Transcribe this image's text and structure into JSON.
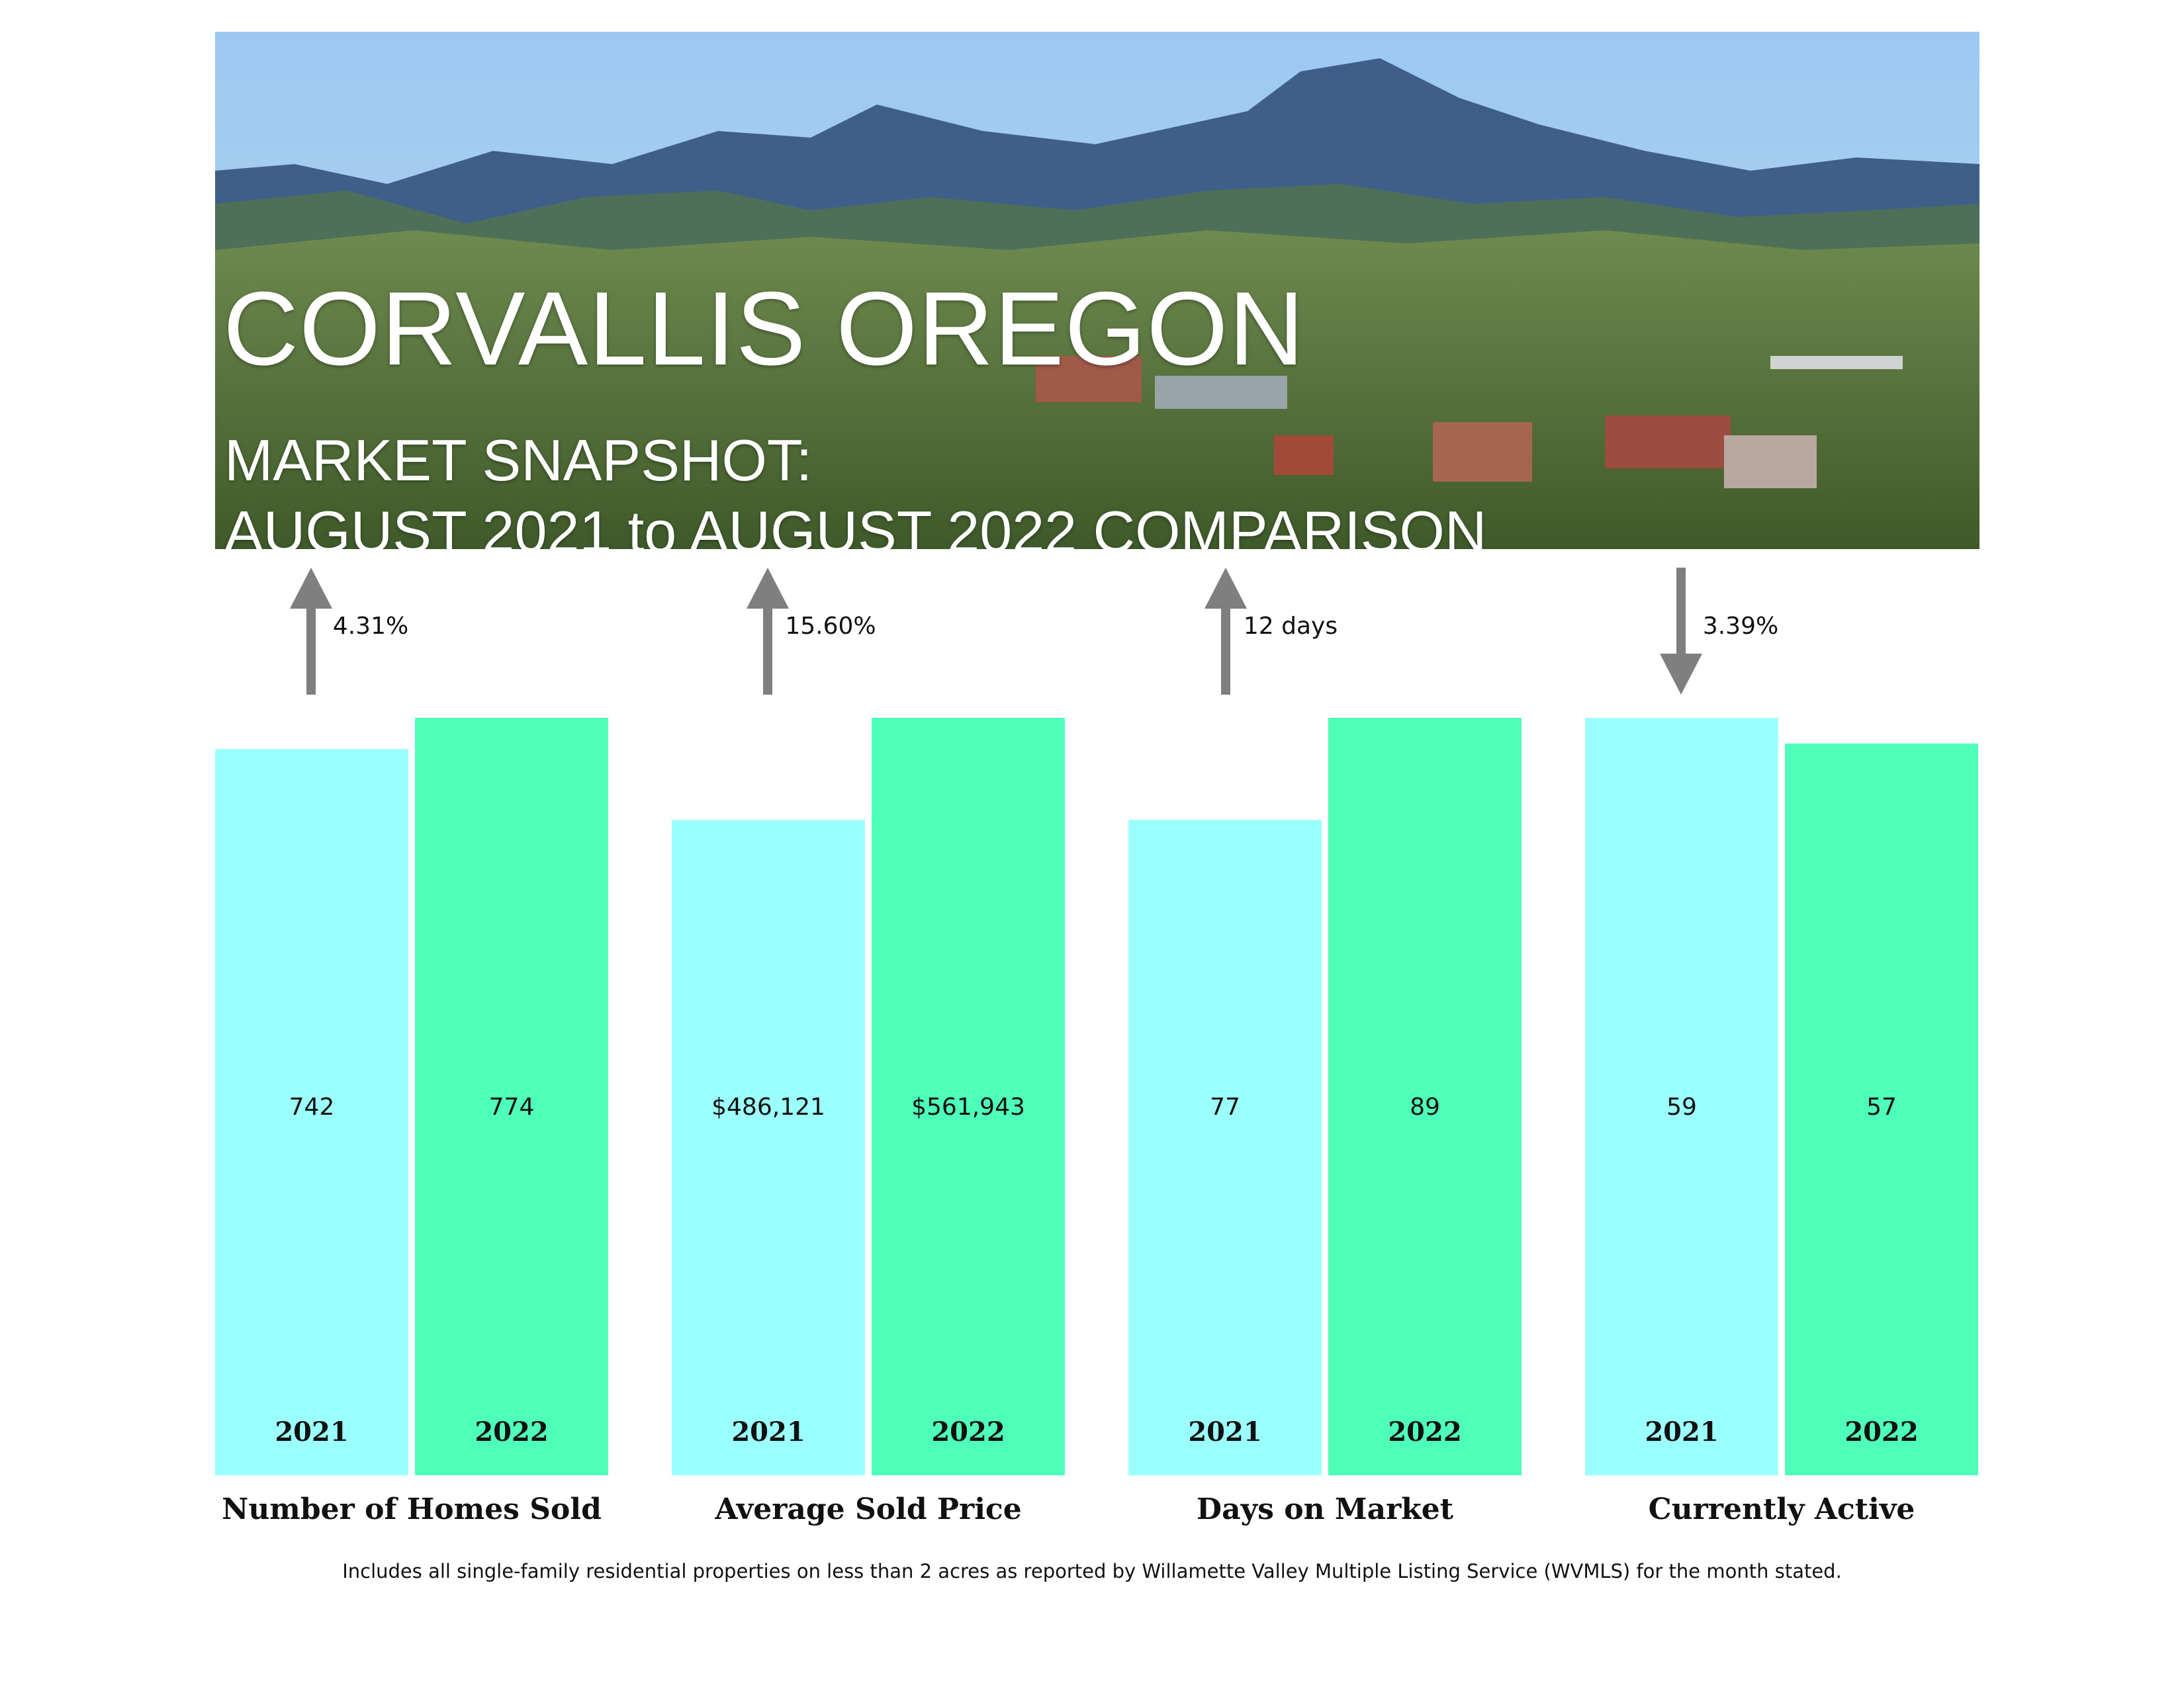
{
  "header": {
    "title": "CORVALLIS OREGON",
    "subtitle_1": "MARKET SNAPSHOT:",
    "subtitle_2": "AUGUST 2021 to AUGUST 2022 COMPARISON"
  },
  "colors": {
    "bar_2021": "#9bfffd",
    "bar_2022": "#4effba",
    "arrow": "#7f7f7f",
    "text": "#111111"
  },
  "chart_data": [
    {
      "type": "bar",
      "title": "Number of Homes Sold",
      "categories": [
        "2021",
        "2022"
      ],
      "values": [
        742,
        774
      ],
      "value_labels": [
        "742",
        "774"
      ],
      "change": {
        "direction": "up",
        "label": "4.31%"
      }
    },
    {
      "type": "bar",
      "title": "Average Sold Price",
      "categories": [
        "2021",
        "2022"
      ],
      "values": [
        486121,
        561943
      ],
      "value_labels": [
        "$486,121",
        "$561,943"
      ],
      "change": {
        "direction": "up",
        "label": "15.60%"
      }
    },
    {
      "type": "bar",
      "title": "Days on Market",
      "categories": [
        "2021",
        "2022"
      ],
      "values": [
        77,
        89
      ],
      "value_labels": [
        "77",
        "89"
      ],
      "change": {
        "direction": "up",
        "label": "12 days"
      }
    },
    {
      "type": "bar",
      "title": "Currently Active",
      "categories": [
        "2021",
        "2022"
      ],
      "values": [
        59,
        57
      ],
      "value_labels": [
        "59",
        "57"
      ],
      "change": {
        "direction": "down",
        "label": "3.39%"
      }
    }
  ],
  "footnote": "Includes all single-family residential properties on less than 2 acres as reported by Willamette Valley Multiple Listing Service (WVMLS) for the month stated."
}
